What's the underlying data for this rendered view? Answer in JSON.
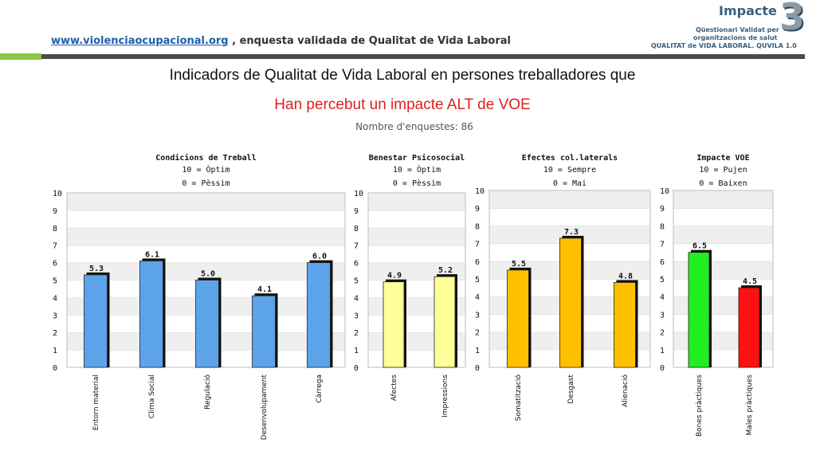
{
  "header": {
    "url_text": "www.violenciaocupacional.org",
    "rest_text": " , enquesta validada de Qualitat de Vida Laboral"
  },
  "logo": {
    "title": "Impacte",
    "number": "3",
    "line1": "Qüestionari Validat per",
    "line2": "organitzacions de salut",
    "line3": "QUALITAT de VIDA LABORAL. QUVILA 1.0"
  },
  "title": "Indicadors de Qualitat de Vida Laboral en persones treballadores que",
  "title2": "Han percebut un impacte ALT de VOE",
  "subtitle": "Nombre d'enquestes: 86",
  "colors": {
    "accent_green": "#8cc63f",
    "bar_dark": "#4a4a4a"
  },
  "chart_data": [
    {
      "type": "bar",
      "title": "Condicions de Treball",
      "subtitle_lines": [
        "10 = Òptim",
        "0 = Pèssim"
      ],
      "categories": [
        "Entorn material",
        "Clima Social",
        "Regulació",
        "Desenvolupament",
        "Càrrega"
      ],
      "values": [
        5.3,
        6.1,
        5.0,
        4.1,
        6.0
      ],
      "labels": [
        "5.3",
        "6.1",
        "5.0",
        "4.1",
        "6.0"
      ],
      "color": "#5ca3ea",
      "ylim": [
        0,
        10
      ],
      "yticks": [
        "0",
        "1",
        "2",
        "3",
        "4",
        "5",
        "6",
        "7",
        "8",
        "9",
        "10"
      ],
      "grid": true
    },
    {
      "type": "bar",
      "title": "Benestar Psicosocial",
      "subtitle_lines": [
        "10 = Òptim",
        "0 = Pèssim"
      ],
      "categories": [
        "Afectes",
        "Impressions"
      ],
      "values": [
        4.9,
        5.2
      ],
      "labels": [
        "4.9",
        "5.2"
      ],
      "color": "#ffff99",
      "ylim": [
        0,
        10
      ],
      "yticks": [
        "0",
        "1",
        "2",
        "3",
        "4",
        "5",
        "6",
        "7",
        "8",
        "9",
        "10"
      ],
      "grid": true
    },
    {
      "type": "bar",
      "title": "Efectes col.laterals",
      "subtitle_lines": [
        "10 = Sempre",
        "0 = Mai"
      ],
      "categories": [
        "Somatització",
        "Desgast",
        "Alienació"
      ],
      "values": [
        5.5,
        7.3,
        4.8
      ],
      "labels": [
        "5.5",
        "7.3",
        "4.8"
      ],
      "color": "#ffc000",
      "ylim": [
        0,
        10
      ],
      "yticks": [
        "0",
        "1",
        "2",
        "3",
        "4",
        "5",
        "6",
        "7",
        "8",
        "9",
        "10"
      ],
      "grid": true
    },
    {
      "type": "bar",
      "title": "Impacte VOE",
      "subtitle_lines": [
        "10 = Pujen",
        "0 = Baixen"
      ],
      "categories": [
        "Bones pràctiques",
        "Males pràctiques"
      ],
      "values": [
        6.5,
        4.5
      ],
      "labels": [
        "6.5",
        "4.5"
      ],
      "colors": [
        "#22ee22",
        "#ff1111"
      ],
      "ylim": [
        0,
        10
      ],
      "yticks": [
        "0",
        "1",
        "2",
        "3",
        "4",
        "5",
        "6",
        "7",
        "8",
        "9",
        "10"
      ],
      "grid": true
    }
  ]
}
